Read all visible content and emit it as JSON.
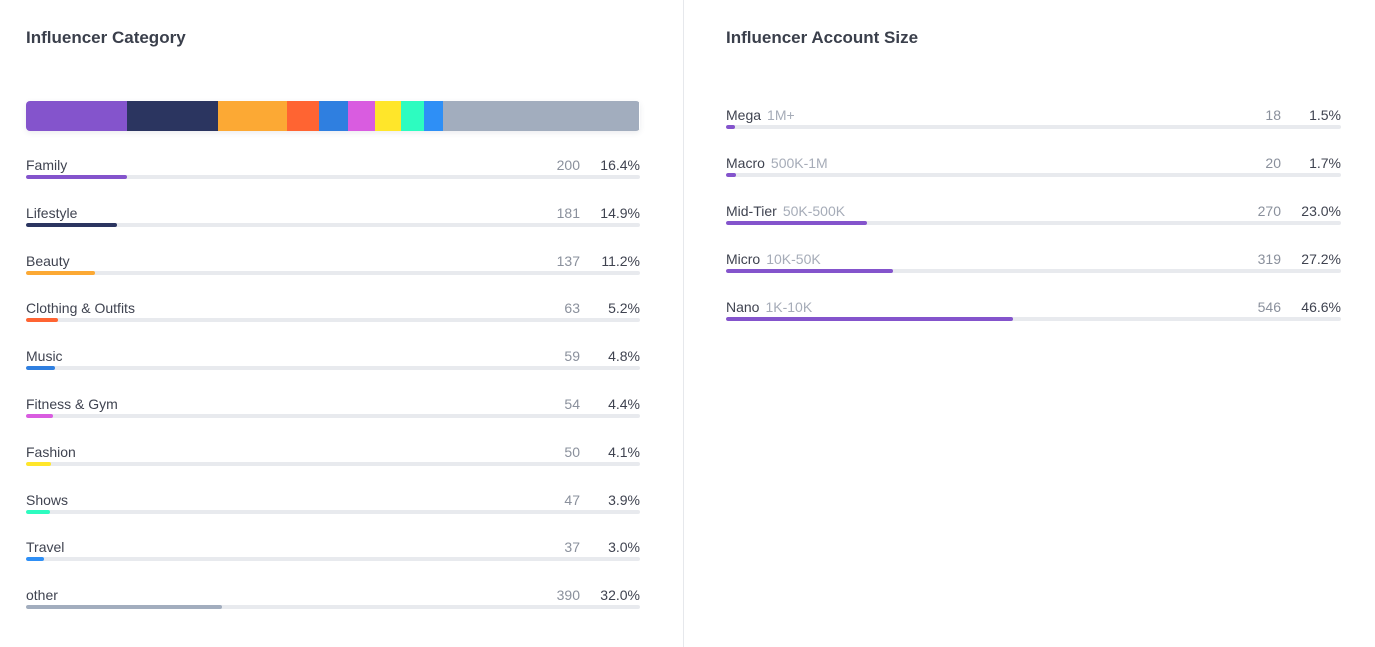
{
  "category": {
    "title": "Influencer Category",
    "items": [
      {
        "label": "Family",
        "count": "200",
        "pct": "16.4%",
        "value": 16.4,
        "color": "#8454cc"
      },
      {
        "label": "Lifestyle",
        "count": "181",
        "pct": "14.9%",
        "value": 14.9,
        "color": "#2b3560"
      },
      {
        "label": "Beauty",
        "count": "137",
        "pct": "11.2%",
        "value": 11.2,
        "color": "#fca934"
      },
      {
        "label": "Clothing & Outfits",
        "count": "63",
        "pct": "5.2%",
        "value": 5.2,
        "color": "#ff6432"
      },
      {
        "label": "Music",
        "count": "59",
        "pct": "4.8%",
        "value": 4.8,
        "color": "#2f7fe0"
      },
      {
        "label": "Fitness & Gym",
        "count": "54",
        "pct": "4.4%",
        "value": 4.4,
        "color": "#d95ce0"
      },
      {
        "label": "Fashion",
        "count": "50",
        "pct": "4.1%",
        "value": 4.1,
        "color": "#ffe62a"
      },
      {
        "label": "Shows",
        "count": "47",
        "pct": "3.9%",
        "value": 3.9,
        "color": "#2dfcc0"
      },
      {
        "label": "Travel",
        "count": "37",
        "pct": "3.0%",
        "value": 3.0,
        "color": "#2e8ff6"
      },
      {
        "label": "other",
        "count": "390",
        "pct": "32.0%",
        "value": 32.0,
        "color": "#a2adbe"
      }
    ]
  },
  "account_size": {
    "title": "Influencer Account Size",
    "items": [
      {
        "label": "Mega",
        "range": "1M+",
        "count": "18",
        "pct": "1.5%",
        "value": 1.5,
        "color": "#8454cc"
      },
      {
        "label": "Macro",
        "range": "500K-1M",
        "count": "20",
        "pct": "1.7%",
        "value": 1.7,
        "color": "#8454cc"
      },
      {
        "label": "Mid-Tier",
        "range": "50K-500K",
        "count": "270",
        "pct": "23.0%",
        "value": 23.0,
        "color": "#8454cc"
      },
      {
        "label": "Micro",
        "range": "10K-50K",
        "count": "319",
        "pct": "27.2%",
        "value": 27.2,
        "color": "#8454cc"
      },
      {
        "label": "Nano",
        "range": "1K-10K",
        "count": "546",
        "pct": "46.6%",
        "value": 46.6,
        "color": "#8454cc"
      }
    ]
  }
}
